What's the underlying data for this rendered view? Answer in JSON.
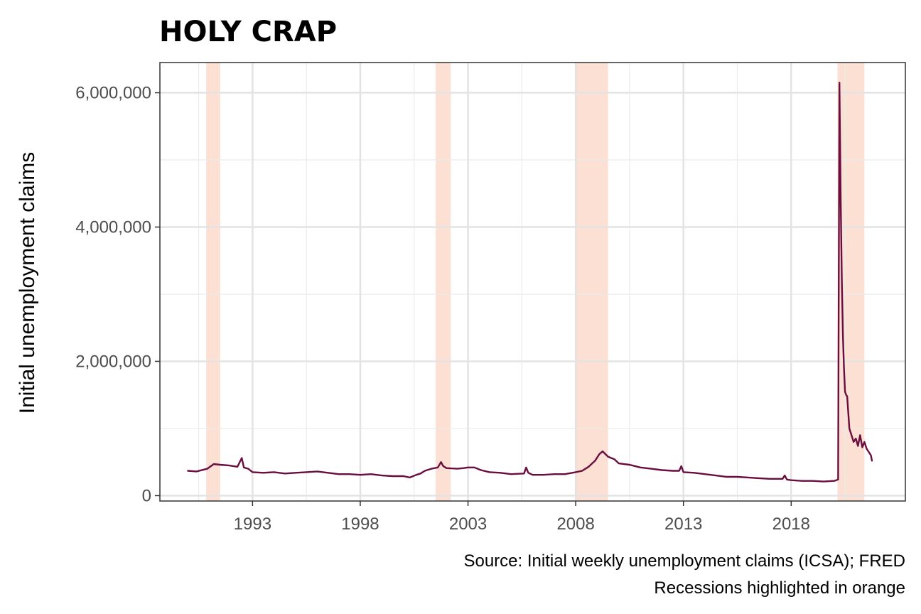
{
  "chart_data": {
    "type": "line",
    "title": "HOLY CRAP",
    "xlabel": "",
    "ylabel": "Initial unemployment claims",
    "caption_lines": [
      "Source: Initial weekly unemployment claims (ICSA); FRED",
      "Recessions highlighted in orange"
    ],
    "xlim": [
      1988.7,
      2023.3
    ],
    "ylim": [
      -80000,
      6450000
    ],
    "x_ticks": [
      1993,
      1998,
      2003,
      2008,
      2013,
      2018
    ],
    "x_tick_labels": [
      "1993",
      "1998",
      "2003",
      "2008",
      "2013",
      "2018"
    ],
    "y_ticks": [
      0,
      2000000,
      4000000,
      6000000
    ],
    "y_tick_labels": [
      "0",
      "2,000,000",
      "4,000,000",
      "6,000,000"
    ],
    "grid": true,
    "recessions": [
      {
        "start": 1990.85,
        "end": 1991.5
      },
      {
        "start": 2001.5,
        "end": 2002.2
      },
      {
        "start": 2008.0,
        "end": 2009.5
      },
      {
        "start": 2020.15,
        "end": 2021.4
      }
    ],
    "series": [
      {
        "color": "#6a0d3f",
        "x": [
          1990.0,
          1990.4,
          1990.9,
          1991.2,
          1991.5,
          1991.9,
          1992.3,
          1992.5,
          1992.6,
          1992.8,
          1993.0,
          1993.5,
          1994.0,
          1994.5,
          1995.0,
          1995.5,
          1996.0,
          1996.5,
          1997.0,
          1997.5,
          1998.0,
          1998.5,
          1999.0,
          1999.5,
          2000.0,
          2000.3,
          2000.6,
          2000.8,
          2001.0,
          2001.3,
          2001.6,
          2001.75,
          2001.85,
          2002.0,
          2002.5,
          2002.8,
          2003.0,
          2003.3,
          2003.6,
          2004.0,
          2004.5,
          2005.0,
          2005.6,
          2005.7,
          2005.8,
          2006.0,
          2006.5,
          2007.0,
          2007.5,
          2008.0,
          2008.3,
          2008.6,
          2008.9,
          2009.1,
          2009.25,
          2009.5,
          2009.8,
          2010.0,
          2010.5,
          2011.0,
          2011.5,
          2012.0,
          2012.5,
          2012.8,
          2012.9,
          2013.0,
          2013.5,
          2014.0,
          2014.5,
          2015.0,
          2015.5,
          2016.0,
          2016.5,
          2017.0,
          2017.6,
          2017.7,
          2017.8,
          2018.0,
          2018.5,
          2019.0,
          2019.5,
          2020.0,
          2020.18,
          2020.21,
          2020.24,
          2020.27,
          2020.3,
          2020.35,
          2020.4,
          2020.45,
          2020.5,
          2020.55,
          2020.6,
          2020.7,
          2020.8,
          2020.9,
          2021.0,
          2021.1,
          2021.2,
          2021.3,
          2021.4,
          2021.5,
          2021.6,
          2021.7,
          2021.75
        ],
        "values": [
          370000,
          360000,
          400000,
          470000,
          460000,
          450000,
          430000,
          560000,
          420000,
          400000,
          350000,
          340000,
          350000,
          330000,
          340000,
          350000,
          360000,
          340000,
          320000,
          320000,
          310000,
          320000,
          300000,
          290000,
          290000,
          270000,
          310000,
          330000,
          370000,
          400000,
          420000,
          500000,
          440000,
          410000,
          400000,
          410000,
          420000,
          420000,
          380000,
          350000,
          340000,
          320000,
          330000,
          420000,
          340000,
          310000,
          310000,
          320000,
          320000,
          350000,
          370000,
          430000,
          520000,
          620000,
          660000,
          580000,
          540000,
          480000,
          460000,
          420000,
          400000,
          380000,
          370000,
          370000,
          440000,
          350000,
          340000,
          320000,
          300000,
          280000,
          280000,
          270000,
          260000,
          250000,
          250000,
          300000,
          240000,
          230000,
          220000,
          220000,
          210000,
          220000,
          240000,
          3300000,
          6150000,
          5300000,
          4400000,
          3200000,
          2400000,
          1900000,
          1550000,
          1500000,
          1480000,
          1000000,
          900000,
          800000,
          850000,
          740000,
          900000,
          720000,
          800000,
          700000,
          650000,
          600000,
          520000
        ]
      }
    ]
  }
}
